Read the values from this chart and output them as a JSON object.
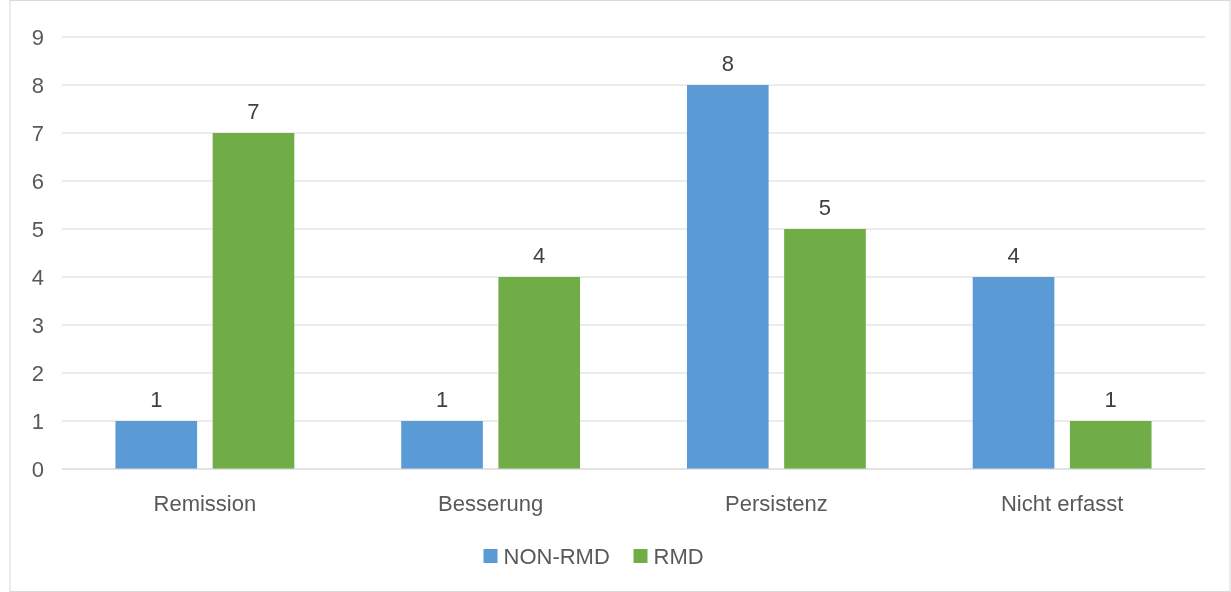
{
  "chart_data": {
    "type": "bar",
    "categories": [
      "Remission",
      "Besserung",
      "Persistenz",
      "Nicht erfasst"
    ],
    "series": [
      {
        "name": "NON-RMD",
        "color": "#5b9bd5",
        "values": [
          1,
          1,
          8,
          4
        ]
      },
      {
        "name": "RMD",
        "color": "#70ad47",
        "values": [
          7,
          4,
          5,
          1
        ]
      }
    ],
    "ylim": [
      0,
      9
    ],
    "yticks": [
      0,
      1,
      2,
      3,
      4,
      5,
      6,
      7,
      8,
      9
    ],
    "grid": "y",
    "legend": "bottom",
    "data_labels": true
  }
}
